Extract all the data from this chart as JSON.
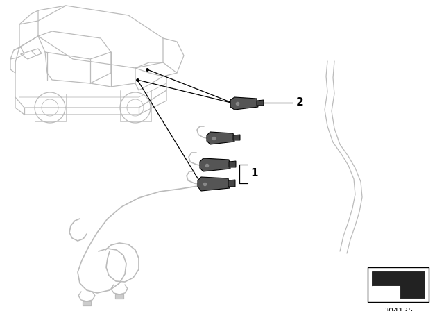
{
  "background_color": "#ffffff",
  "line_color": "#000000",
  "part_color": "#555555",
  "light_line_color": "#bbbbbb",
  "part_number": "304125",
  "label_1": "1",
  "label_2": "2",
  "fig_width": 6.4,
  "fig_height": 4.48,
  "dpi": 100
}
